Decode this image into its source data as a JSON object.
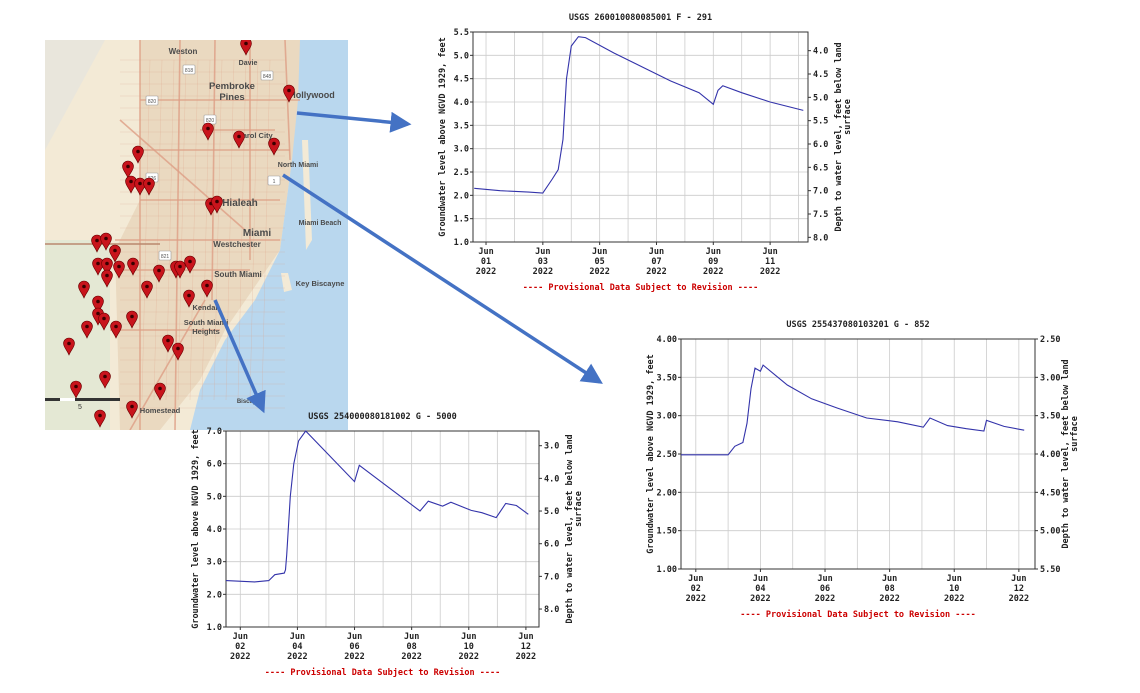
{
  "map": {
    "labels": [
      "Weston",
      "Davie",
      "Pembroke Pines",
      "Hollywood",
      "Carol City",
      "North Miami",
      "Hialeah",
      "Miami Beach",
      "Miami",
      "Westchester",
      "South Miami",
      "Key Biscayne",
      "Kendall",
      "South Miami Heights",
      "Homestead",
      "Biscayne"
    ],
    "route_shields": [
      "818",
      "848",
      "820",
      "821",
      "826",
      "1"
    ],
    "scale_label": "5",
    "colors": {
      "land": "#f3ead6",
      "urban": "#ead9c0",
      "roads": "#dd9e84",
      "water": "#b9d7ee",
      "marker": "#c8141c",
      "arrow": "#4472c4"
    }
  },
  "chart_data": [
    {
      "type": "line",
      "title": "USGS 260010080085001 F  - 291",
      "ylabel": "Groundwater level above NGVD 1929, feet",
      "y2label": "Depth to water level, feet below land surface",
      "footer": "---- Provisional Data Subject to Revision ----",
      "xlim": [
        "2022-05-31T13:00",
        "2022-06-12T08:00"
      ],
      "ylim": [
        1.0,
        5.5
      ],
      "y2lim": [
        8.1,
        3.6
      ],
      "yticks": [
        "1.0",
        "1.5",
        "2.0",
        "2.5",
        "3.0",
        "3.5",
        "4.0",
        "4.5",
        "5.0",
        "5.5"
      ],
      "y2ticks": [
        "4.0",
        "4.5",
        "5.0",
        "5.5",
        "6.0",
        "6.5",
        "7.0",
        "7.5",
        "8.0"
      ],
      "xticks": [
        {
          "date": "2022-06-01",
          "label": "Jun 01 2022"
        },
        {
          "date": "2022-06-03",
          "label": "Jun 03 2022"
        },
        {
          "date": "2022-06-05",
          "label": "Jun 05 2022"
        },
        {
          "date": "2022-06-07",
          "label": "Jun 07 2022"
        },
        {
          "date": "2022-06-09",
          "label": "Jun 09 2022"
        },
        {
          "date": "2022-06-11",
          "label": "Jun 11 2022"
        }
      ],
      "grid": true,
      "line_color": "#3333aa",
      "points": [
        [
          "2022-05-31T14:00",
          2.15
        ],
        [
          "2022-06-01T12:00",
          2.1
        ],
        [
          "2022-06-02T12:00",
          2.07
        ],
        [
          "2022-06-03T00:00",
          2.05
        ],
        [
          "2022-06-03T08:00",
          2.35
        ],
        [
          "2022-06-03T13:00",
          2.55
        ],
        [
          "2022-06-03T17:00",
          3.2
        ],
        [
          "2022-06-03T20:00",
          4.5
        ],
        [
          "2022-06-04T00:00",
          5.2
        ],
        [
          "2022-06-04T06:00",
          5.4
        ],
        [
          "2022-06-04T12:00",
          5.38
        ],
        [
          "2022-06-05T12:00",
          5.05
        ],
        [
          "2022-06-06T12:00",
          4.75
        ],
        [
          "2022-06-07T12:00",
          4.45
        ],
        [
          "2022-06-08T12:00",
          4.2
        ],
        [
          "2022-06-09T00:00",
          3.95
        ],
        [
          "2022-06-09T04:00",
          4.25
        ],
        [
          "2022-06-09T08:00",
          4.35
        ],
        [
          "2022-06-10T00:00",
          4.2
        ],
        [
          "2022-06-11T00:00",
          4.0
        ],
        [
          "2022-06-12T04:00",
          3.82
        ]
      ]
    },
    {
      "type": "line",
      "title": "USGS 255437080103201 G  - 852",
      "ylabel": "Groundwater level above NGVD 1929, feet",
      "y2label": "Depth to water level, feet below land surface",
      "footer": "---- Provisional Data Subject to Revision ----",
      "xlim": [
        "2022-06-01T13:00",
        "2022-06-12T12:00"
      ],
      "ylim": [
        1.0,
        4.0
      ],
      "y2lim": [
        5.5,
        2.5
      ],
      "yticks": [
        "1.00",
        "1.50",
        "2.00",
        "2.50",
        "3.00",
        "3.50",
        "4.00"
      ],
      "y2ticks": [
        "2.50",
        "3.00",
        "3.50",
        "4.00",
        "4.50",
        "5.00",
        "5.50"
      ],
      "xticks": [
        {
          "date": "2022-06-02",
          "label": "Jun 02 2022"
        },
        {
          "date": "2022-06-04",
          "label": "Jun 04 2022"
        },
        {
          "date": "2022-06-06",
          "label": "Jun 06 2022"
        },
        {
          "date": "2022-06-08",
          "label": "Jun 08 2022"
        },
        {
          "date": "2022-06-10",
          "label": "Jun 10 2022"
        },
        {
          "date": "2022-06-12",
          "label": "Jun 12 2022"
        }
      ],
      "grid": true,
      "line_color": "#3333aa",
      "points": [
        [
          "2022-06-01T13:00",
          2.49
        ],
        [
          "2022-06-03T00:00",
          2.49
        ],
        [
          "2022-06-03T05:00",
          2.6
        ],
        [
          "2022-06-03T11:00",
          2.65
        ],
        [
          "2022-06-03T14:00",
          2.9
        ],
        [
          "2022-06-03T17:00",
          3.35
        ],
        [
          "2022-06-03T20:00",
          3.62
        ],
        [
          "2022-06-04T00:00",
          3.58
        ],
        [
          "2022-06-04T02:00",
          3.66
        ],
        [
          "2022-06-04T13:00",
          3.5
        ],
        [
          "2022-06-04T20:00",
          3.4
        ],
        [
          "2022-06-05T14:00",
          3.22
        ],
        [
          "2022-06-06T09:00",
          3.1
        ],
        [
          "2022-06-07T07:00",
          2.97
        ],
        [
          "2022-06-08T06:00",
          2.92
        ],
        [
          "2022-06-09T01:00",
          2.85
        ],
        [
          "2022-06-09T06:00",
          2.97
        ],
        [
          "2022-06-09T19:00",
          2.87
        ],
        [
          "2022-06-10T09:00",
          2.83
        ],
        [
          "2022-06-10T22:00",
          2.8
        ],
        [
          "2022-06-11T00:00",
          2.94
        ],
        [
          "2022-06-11T13:00",
          2.86
        ],
        [
          "2022-06-12T04:00",
          2.81
        ]
      ]
    },
    {
      "type": "line",
      "title": "USGS 254000080181002 G  - 5000",
      "ylabel": "Groundwater level above NGVD 1929, feet",
      "y2label": "Depth to water level, feet below land surface",
      "footer": "---- Provisional Data Subject to Revision ----",
      "xlim": [
        "2022-06-01T12:00",
        "2022-06-12T11:00"
      ],
      "ylim": [
        1.0,
        7.0
      ],
      "y2lim": [
        8.55,
        2.55
      ],
      "yticks": [
        "1.0",
        "2.0",
        "3.0",
        "4.0",
        "5.0",
        "6.0",
        "7.0"
      ],
      "y2ticks": [
        "3.0",
        "4.0",
        "5.0",
        "6.0",
        "7.0",
        "8.0"
      ],
      "xticks": [
        {
          "date": "2022-06-02",
          "label": "Jun 02 2022"
        },
        {
          "date": "2022-06-04",
          "label": "Jun 04 2022"
        },
        {
          "date": "2022-06-06",
          "label": "Jun 06 2022"
        },
        {
          "date": "2022-06-08",
          "label": "Jun 08 2022"
        },
        {
          "date": "2022-06-10",
          "label": "Jun 10 2022"
        },
        {
          "date": "2022-06-12",
          "label": "Jun 12 2022"
        }
      ],
      "grid": true,
      "line_color": "#3333aa",
      "points": [
        [
          "2022-06-01T12:00",
          2.42
        ],
        [
          "2022-06-02T12:00",
          2.38
        ],
        [
          "2022-06-03T00:00",
          2.42
        ],
        [
          "2022-06-03T05:00",
          2.6
        ],
        [
          "2022-06-03T13:00",
          2.65
        ],
        [
          "2022-06-03T14:00",
          2.75
        ],
        [
          "2022-06-03T15:00",
          3.2
        ],
        [
          "2022-06-03T18:00",
          5.0
        ],
        [
          "2022-06-03T21:00",
          6.0
        ],
        [
          "2022-06-04T01:00",
          6.7
        ],
        [
          "2022-06-04T07:00",
          7.0
        ],
        [
          "2022-06-06T00:00",
          5.45
        ],
        [
          "2022-06-06T04:00",
          5.95
        ],
        [
          "2022-06-08T07:00",
          4.55
        ],
        [
          "2022-06-08T14:00",
          4.85
        ],
        [
          "2022-06-09T02:00",
          4.7
        ],
        [
          "2022-06-09T09:00",
          4.82
        ],
        [
          "2022-06-10T02:00",
          4.57
        ],
        [
          "2022-06-10T11:00",
          4.5
        ],
        [
          "2022-06-10T23:00",
          4.35
        ],
        [
          "2022-06-11T07:00",
          4.78
        ],
        [
          "2022-06-11T16:00",
          4.72
        ],
        [
          "2022-06-12T02:00",
          4.45
        ]
      ]
    }
  ]
}
